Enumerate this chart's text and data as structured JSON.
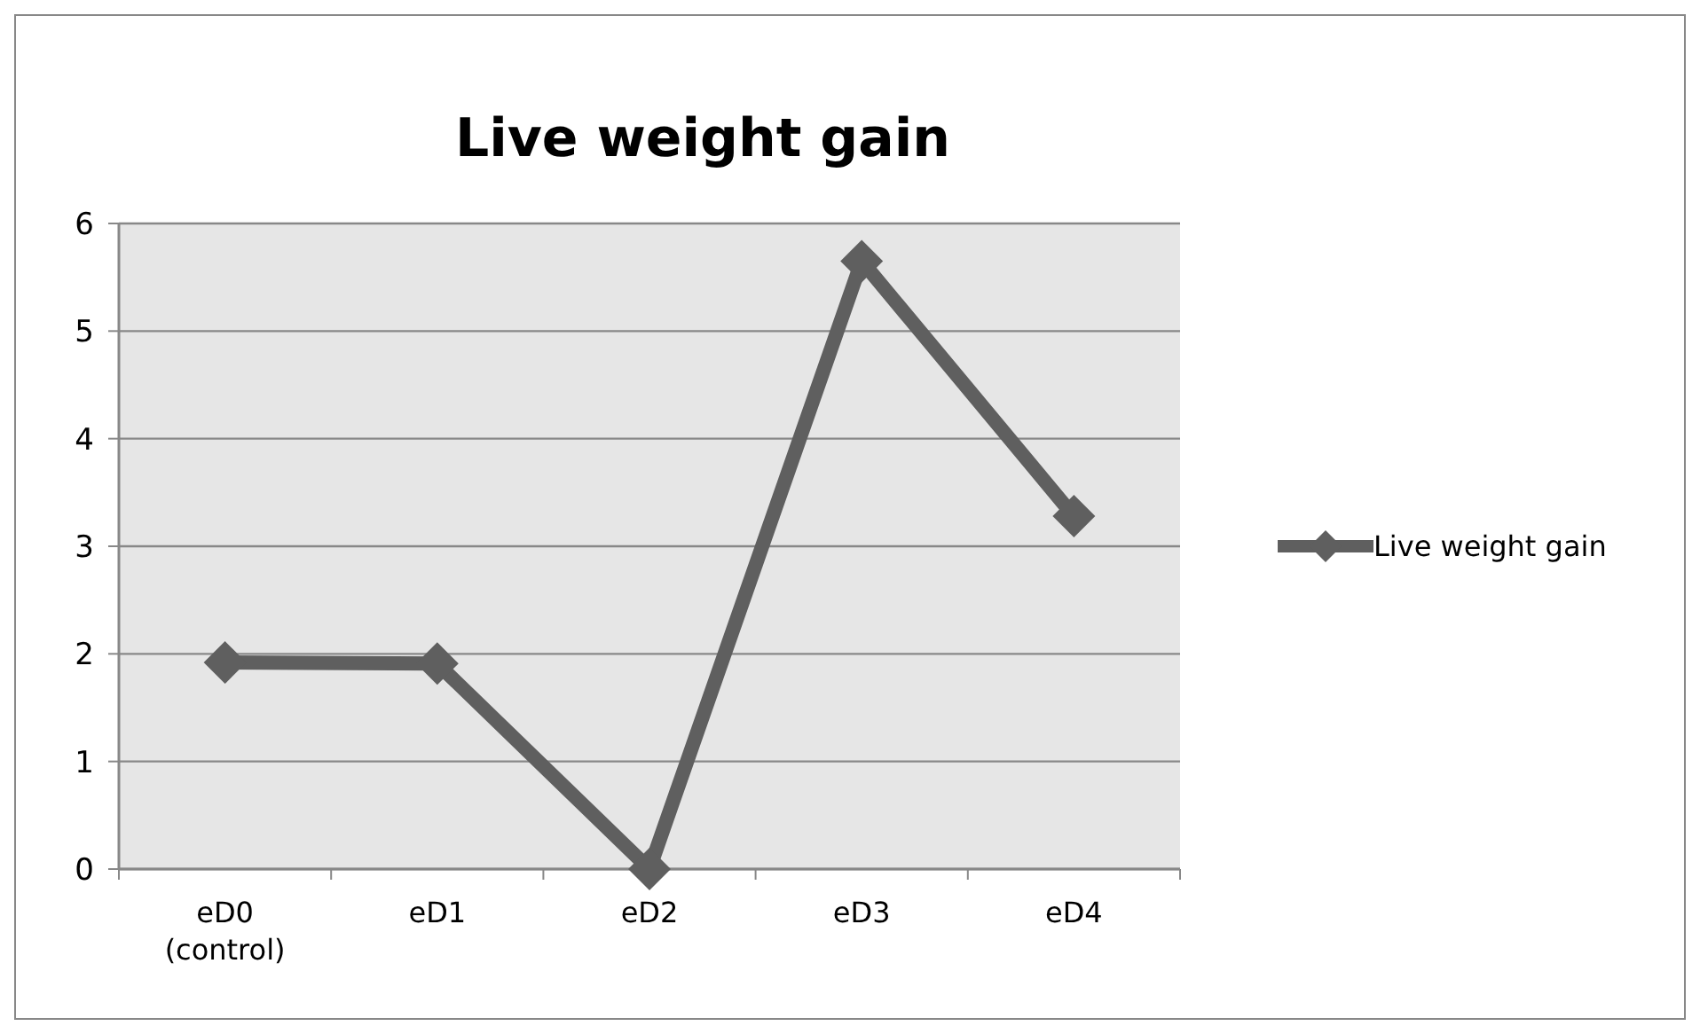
{
  "chart_data": {
    "type": "line",
    "title": "Live weight gain",
    "categories": [
      "eD0 (control)",
      "eD1",
      "eD2",
      "eD3",
      "eD4"
    ],
    "series": [
      {
        "name": "Live weight gain",
        "color": "#5f5f5f",
        "values": [
          1.92,
          1.91,
          0,
          5.65,
          3.28
        ]
      }
    ],
    "ylim": [
      0,
      6
    ],
    "yticks": [
      0,
      1,
      2,
      3,
      4,
      5,
      6
    ],
    "grid": "y",
    "legend": "right",
    "marker": "diamond",
    "line_style": "solid"
  }
}
